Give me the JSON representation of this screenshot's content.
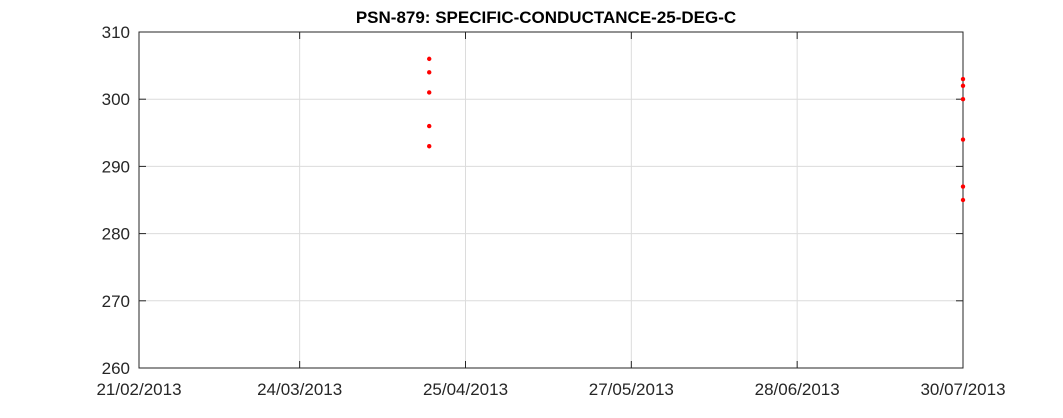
{
  "chart_data": {
    "type": "scatter",
    "title": "PSN-879: SPECIFIC-CONDUCTANCE-25-DEG-C",
    "xlabel": "",
    "ylabel": "",
    "x_type": "date",
    "xlim": [
      "2013-02-21",
      "2013-07-30"
    ],
    "ylim": [
      260,
      310
    ],
    "x_ticks": [
      {
        "date": "2013-02-21",
        "label": "21/02/2013"
      },
      {
        "date": "2013-03-24",
        "label": "24/03/2013"
      },
      {
        "date": "2013-04-25",
        "label": "25/04/2013"
      },
      {
        "date": "2013-05-27",
        "label": "27/05/2013"
      },
      {
        "date": "2013-06-28",
        "label": "28/06/2013"
      },
      {
        "date": "2013-07-30",
        "label": "30/07/2013"
      }
    ],
    "y_ticks": [
      260,
      270,
      280,
      290,
      300,
      310
    ],
    "grid": true,
    "marker_color": "#ff0000",
    "series": [
      {
        "points": [
          {
            "x": "2013-04-18",
            "y": 306
          },
          {
            "x": "2013-04-18",
            "y": 304
          },
          {
            "x": "2013-04-18",
            "y": 301
          },
          {
            "x": "2013-04-18",
            "y": 296
          },
          {
            "x": "2013-04-18",
            "y": 293
          },
          {
            "x": "2013-07-30",
            "y": 303
          },
          {
            "x": "2013-07-30",
            "y": 302
          },
          {
            "x": "2013-07-30",
            "y": 300
          },
          {
            "x": "2013-07-30",
            "y": 294
          },
          {
            "x": "2013-07-30",
            "y": 287
          },
          {
            "x": "2013-07-30",
            "y": 285
          }
        ]
      }
    ]
  }
}
